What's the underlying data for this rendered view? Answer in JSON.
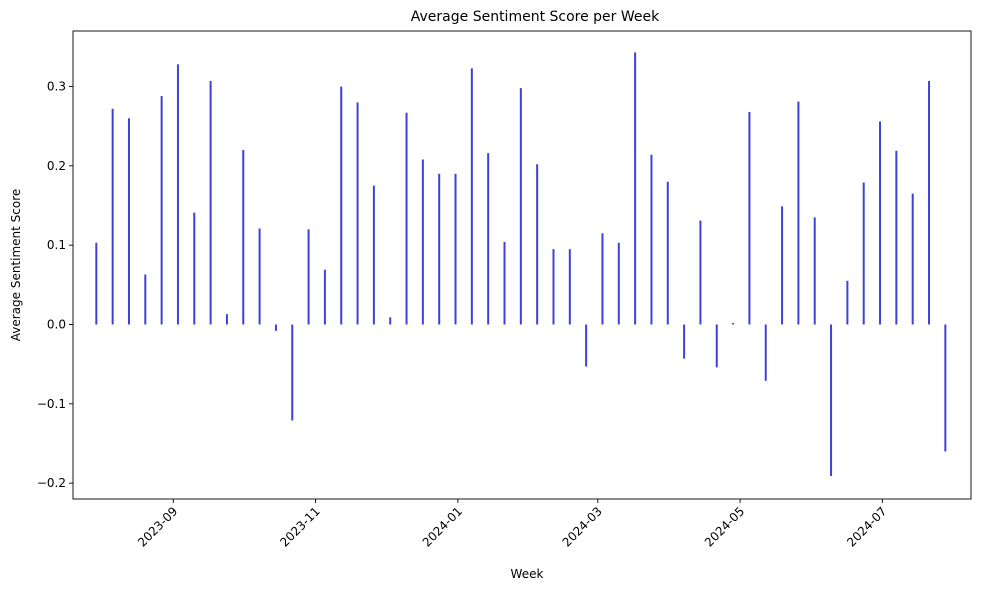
{
  "chart_data": {
    "type": "bar",
    "title": "Average Sentiment Score per Week",
    "xlabel": "Week",
    "ylabel": "Average Sentiment Score",
    "ylim": [
      -0.22,
      0.37
    ],
    "xlim": [
      "2023-07-20",
      "2024-08-08"
    ],
    "grid": false,
    "bar_color": "#0000cc",
    "y_ticks": [
      -0.2,
      -0.1,
      0.0,
      0.1,
      0.2,
      0.3
    ],
    "y_tick_labels": [
      "−0.2",
      "−0.1",
      "0.0",
      "0.1",
      "0.2",
      "0.3"
    ],
    "x_ticks": [
      "2023-09-01",
      "2023-11-01",
      "2024-01-01",
      "2024-03-01",
      "2024-05-01",
      "2024-07-01"
    ],
    "x_tick_labels": [
      "2023-09",
      "2023-11",
      "2024-01",
      "2024-03",
      "2024-05",
      "2024-07"
    ],
    "x": [
      "2023-07-30",
      "2023-08-06",
      "2023-08-13",
      "2023-08-20",
      "2023-08-27",
      "2023-09-03",
      "2023-09-10",
      "2023-09-17",
      "2023-09-24",
      "2023-10-01",
      "2023-10-08",
      "2023-10-15",
      "2023-10-22",
      "2023-10-29",
      "2023-11-05",
      "2023-11-12",
      "2023-11-19",
      "2023-11-26",
      "2023-12-03",
      "2023-12-10",
      "2023-12-17",
      "2023-12-24",
      "2023-12-31",
      "2024-01-07",
      "2024-01-14",
      "2024-01-21",
      "2024-01-28",
      "2024-02-04",
      "2024-02-11",
      "2024-02-18",
      "2024-02-25",
      "2024-03-03",
      "2024-03-10",
      "2024-03-17",
      "2024-03-24",
      "2024-03-31",
      "2024-04-07",
      "2024-04-14",
      "2024-04-21",
      "2024-04-28",
      "2024-05-05",
      "2024-05-12",
      "2024-05-19",
      "2024-05-26",
      "2024-06-02",
      "2024-06-09",
      "2024-06-16",
      "2024-06-23",
      "2024-06-30",
      "2024-07-07",
      "2024-07-14",
      "2024-07-21",
      "2024-07-28"
    ],
    "values": [
      0.103,
      0.272,
      0.26,
      0.063,
      0.288,
      0.328,
      0.141,
      0.307,
      0.013,
      0.22,
      0.121,
      -0.008,
      -0.121,
      0.12,
      0.069,
      0.3,
      0.28,
      0.175,
      0.009,
      0.267,
      0.208,
      0.19,
      0.19,
      0.323,
      0.216,
      0.104,
      0.298,
      0.202,
      0.095,
      0.095,
      -0.053,
      0.115,
      0.103,
      0.343,
      0.214,
      0.18,
      -0.043,
      0.131,
      -0.054,
      0.002,
      0.268,
      -0.071,
      0.149,
      0.281,
      0.135,
      -0.191,
      0.055,
      0.179,
      0.256,
      0.219,
      0.165,
      0.307,
      -0.16
    ]
  }
}
